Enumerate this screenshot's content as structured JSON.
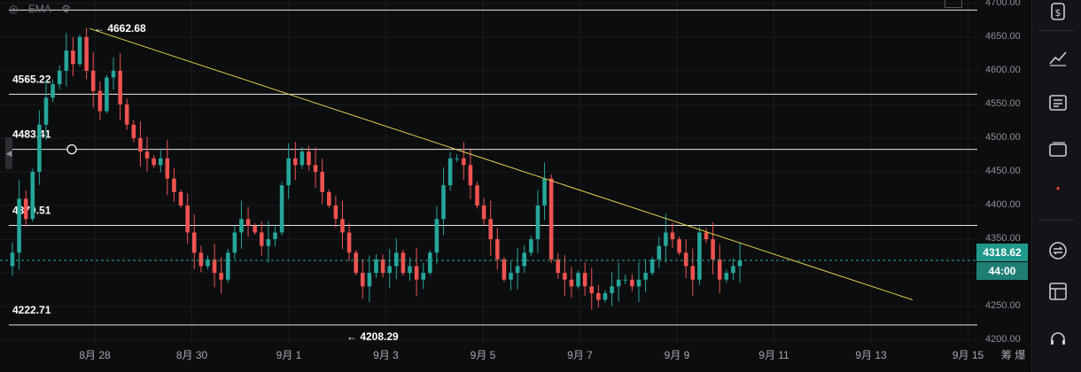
{
  "chart_data": {
    "type": "candlestick",
    "title": "",
    "y_range": [
      4195,
      4705
    ],
    "x_range": [
      "08-27",
      "09-15"
    ],
    "price_ticks": [
      4700,
      4650,
      4600,
      4550,
      4500,
      4450,
      4400,
      4350,
      4300,
      4250,
      4200
    ],
    "time_ticks": [
      "8月 28",
      "8月 30",
      "9月 1",
      "9月 3",
      "9月 5",
      "9月 7",
      "9月 9",
      "9月 11",
      "9月 13",
      "9月 15"
    ],
    "horizontal_levels": [
      {
        "value": 4690.0,
        "label": ""
      },
      {
        "value": 4565.22,
        "label": "4565.22"
      },
      {
        "value": 4483.41,
        "label": "4483.41"
      },
      {
        "value": 4370.51,
        "label": "4370.51"
      },
      {
        "value": 4222.71,
        "label": "4222.71"
      }
    ],
    "extreme_labels": [
      {
        "value": 4662.68,
        "text": "← 4662.68",
        "at": "8月 28"
      },
      {
        "value": 4208.29,
        "text": "← 4208.29",
        "at": "9月 2"
      }
    ],
    "trendline": {
      "from": {
        "date": "8月 28",
        "value": 4662.68
      },
      "to": {
        "date": "9月 14",
        "value": 4260
      }
    },
    "last_price": 4318.62,
    "close_series": [
      4330,
      4410,
      4380,
      4450,
      4520,
      4560,
      4580,
      4600,
      4630,
      4610,
      4650,
      4600,
      4570,
      4540,
      4590,
      4600,
      4550,
      4520,
      4500,
      4480,
      4470,
      4460,
      4470,
      4440,
      4420,
      4400,
      4360,
      4330,
      4310,
      4320,
      4300,
      4290,
      4330,
      4360,
      4380,
      4370,
      4360,
      4340,
      4350,
      4360,
      4430,
      4470,
      4460,
      4480,
      4460,
      4450,
      4420,
      4400,
      4380,
      4360,
      4330,
      4300,
      4280,
      4300,
      4320,
      4300,
      4310,
      4330,
      4300,
      4310,
      4290,
      4300,
      4330,
      4380,
      4430,
      4470,
      4470,
      4460,
      4430,
      4400,
      4380,
      4350,
      4320,
      4290,
      4300,
      4310,
      4330,
      4350,
      4400,
      4440,
      4320,
      4300,
      4290,
      4280,
      4300,
      4280,
      4270,
      4260,
      4270,
      4280,
      4290,
      4290,
      4280,
      4290,
      4300,
      4320,
      4340,
      4360,
      4350,
      4330,
      4310,
      4290,
      4360,
      4350,
      4320,
      4290,
      4300,
      4310,
      4318.62
    ]
  },
  "price_badge": {
    "price": "4318.62",
    "countdown": "44:00"
  },
  "axis_corner": "筹 爆",
  "legend": {
    "items": [
      "EMA"
    ]
  },
  "colors": {
    "up": "#26a69a",
    "down": "#ef5350",
    "trendline": "#e6d04d",
    "level": "#e6e6e6",
    "grid": "#1a1c20",
    "badge": "#1f9a8a"
  },
  "toolbar": {
    "icons": [
      "dollar-icon",
      "line-chart-icon",
      "news-icon",
      "tag-icon",
      "dot-icon",
      "exchange-icon",
      "layout-icon",
      "headset-icon"
    ]
  }
}
